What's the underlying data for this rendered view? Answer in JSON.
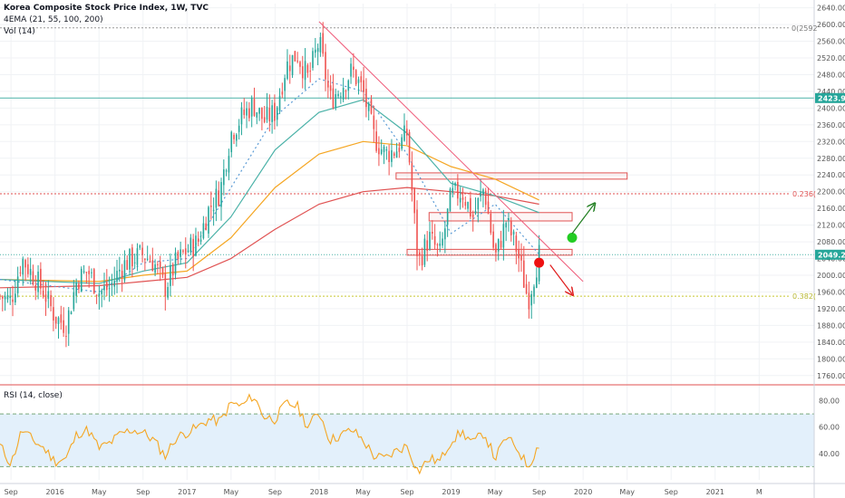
{
  "legend": {
    "title": "Korea Composite Stock Price Index, 1W, TVC",
    "ema": "4EMA (21, 55, 100, 200)",
    "vol": "Vol (14)",
    "rsi": "RSI (14, close)"
  },
  "colors": {
    "up": "#26a69a",
    "down": "#ef5350",
    "ema21": "#5b9bd5",
    "ema55": "#4bb2a8",
    "ema100": "#f5a623",
    "ema200": "#e05252",
    "rsi_line": "#f5a623",
    "rsi_band": "#e3f0fb",
    "trendline": "#ef5c7a",
    "zone": "#e05252",
    "arrow_up": "#1e7d1e",
    "arrow_down": "#e01b1b",
    "dot_green": "#22cc22",
    "dot_red": "#ee1111",
    "hline": "#4bb2a8",
    "fib236": "#e05252",
    "fib382": "#c8c832",
    "price_tag": "#26a69a"
  },
  "labels": {
    "tag_2423": "2423.99",
    "tag_2049": "2049.20",
    "fib_0": "0(2592",
    "fib_236": "0.236(",
    "fib_382": "0.382("
  },
  "chart_data": [
    {
      "type": "candlestick",
      "price_axis": {
        "ylim": [
          1740,
          2650
        ],
        "ticks": [
          1760,
          1800,
          1840,
          1880,
          1920,
          1960,
          2000,
          2040,
          2080,
          2120,
          2160,
          2200,
          2240,
          2280,
          2320,
          2360,
          2400,
          2440,
          2480,
          2520,
          2560,
          2600,
          2640
        ],
        "tick_labels": [
          "1760.00",
          "1800.00",
          "1840.00",
          "1880.00",
          "1920.00",
          "1960.00",
          "2000.00",
          "2040.00",
          "2080.00",
          "2120.00",
          "2160.00",
          "2200.00",
          "2240.00",
          "2280.00",
          "2320.00",
          "2360.00",
          "2400.00",
          "2440.00",
          "2480.00",
          "2520.00",
          "2560.00",
          "2600.00",
          "2640.00"
        ]
      },
      "time_axis": {
        "start": "2015-08",
        "end": "2021-10",
        "labels": [
          {
            "label": "Sep",
            "date": "2015-09"
          },
          {
            "label": "2016",
            "date": "2016-01"
          },
          {
            "label": "May",
            "date": "2016-05"
          },
          {
            "label": "Sep",
            "date": "2016-09"
          },
          {
            "label": "2017",
            "date": "2017-01"
          },
          {
            "label": "May",
            "date": "2017-05"
          },
          {
            "label": "Sep",
            "date": "2017-09"
          },
          {
            "label": "2018",
            "date": "2018-01"
          },
          {
            "label": "May",
            "date": "2018-05"
          },
          {
            "label": "Sep",
            "date": "2018-09"
          },
          {
            "label": "2019",
            "date": "2019-01"
          },
          {
            "label": "May",
            "date": "2019-05"
          },
          {
            "label": "Sep",
            "date": "2019-09"
          },
          {
            "label": "2020",
            "date": "2020-01"
          },
          {
            "label": "May",
            "date": "2020-05"
          },
          {
            "label": "Sep",
            "date": "2020-09"
          },
          {
            "label": "2021",
            "date": "2021-01"
          },
          {
            "label": "M",
            "date": "2021-05"
          }
        ]
      },
      "price_path": [
        [
          "2015-08",
          1950
        ],
        [
          "2015-09",
          1940
        ],
        [
          "2015-10",
          2040
        ],
        [
          "2015-11",
          2000
        ],
        [
          "2015-12",
          1960
        ],
        [
          "2016-01",
          1900
        ],
        [
          "2016-02",
          1880
        ],
        [
          "2016-03",
          1990
        ],
        [
          "2016-04",
          2010
        ],
        [
          "2016-05",
          1960
        ],
        [
          "2016-06",
          1970
        ],
        [
          "2016-07",
          2020
        ],
        [
          "2016-08",
          2040
        ],
        [
          "2016-09",
          2050
        ],
        [
          "2016-10",
          2030
        ],
        [
          "2016-11",
          1970
        ],
        [
          "2016-12",
          2030
        ],
        [
          "2017-01",
          2060
        ],
        [
          "2017-02",
          2080
        ],
        [
          "2017-03",
          2160
        ],
        [
          "2017-04",
          2200
        ],
        [
          "2017-05",
          2340
        ],
        [
          "2017-06",
          2380
        ],
        [
          "2017-07",
          2410
        ],
        [
          "2017-08",
          2370
        ],
        [
          "2017-09",
          2390
        ],
        [
          "2017-10",
          2500
        ],
        [
          "2017-11",
          2530
        ],
        [
          "2017-12",
          2470
        ],
        [
          "2018-01",
          2560
        ],
        [
          "2018-02",
          2420
        ],
        [
          "2018-03",
          2450
        ],
        [
          "2018-04",
          2490
        ],
        [
          "2018-05",
          2440
        ],
        [
          "2018-06",
          2330
        ],
        [
          "2018-07",
          2290
        ],
        [
          "2018-08",
          2300
        ],
        [
          "2018-09",
          2340
        ],
        [
          "2018-10",
          2030
        ],
        [
          "2018-11",
          2090
        ],
        [
          "2018-12",
          2050
        ],
        [
          "2019-01",
          2190
        ],
        [
          "2019-02",
          2200
        ],
        [
          "2019-03",
          2140
        ],
        [
          "2019-04",
          2210
        ],
        [
          "2019-05",
          2040
        ],
        [
          "2019-06",
          2130
        ],
        [
          "2019-07",
          2060
        ],
        [
          "2019-08",
          1940
        ],
        [
          "2019-09",
          2049.2
        ]
      ],
      "ema_21": [
        [
          "2015-08",
          1990
        ],
        [
          "2016-05",
          1960
        ],
        [
          "2016-09",
          2030
        ],
        [
          "2017-01",
          2040
        ],
        [
          "2017-05",
          2210
        ],
        [
          "2017-09",
          2380
        ],
        [
          "2018-01",
          2470
        ],
        [
          "2018-05",
          2440
        ],
        [
          "2018-09",
          2290
        ],
        [
          "2019-01",
          2100
        ],
        [
          "2019-05",
          2170
        ],
        [
          "2019-09",
          2050
        ]
      ],
      "ema_55": [
        [
          "2015-08",
          1990
        ],
        [
          "2016-05",
          1980
        ],
        [
          "2016-09",
          2010
        ],
        [
          "2017-01",
          2030
        ],
        [
          "2017-05",
          2140
        ],
        [
          "2017-09",
          2300
        ],
        [
          "2018-01",
          2390
        ],
        [
          "2018-05",
          2420
        ],
        [
          "2018-09",
          2340
        ],
        [
          "2019-01",
          2220
        ],
        [
          "2019-05",
          2190
        ],
        [
          "2019-09",
          2150
        ]
      ],
      "ema_100": [
        [
          "2015-08",
          1990
        ],
        [
          "2016-05",
          1985
        ],
        [
          "2016-09",
          2000
        ],
        [
          "2017-01",
          2010
        ],
        [
          "2017-05",
          2090
        ],
        [
          "2017-09",
          2210
        ],
        [
          "2018-01",
          2290
        ],
        [
          "2018-05",
          2320
        ],
        [
          "2018-09",
          2310
        ],
        [
          "2019-01",
          2260
        ],
        [
          "2019-05",
          2230
        ],
        [
          "2019-09",
          2180
        ]
      ],
      "ema_200": [
        [
          "2015-08",
          1970
        ],
        [
          "2016-05",
          1975
        ],
        [
          "2016-09",
          1985
        ],
        [
          "2017-01",
          1995
        ],
        [
          "2017-05",
          2040
        ],
        [
          "2017-09",
          2110
        ],
        [
          "2018-01",
          2170
        ],
        [
          "2018-05",
          2200
        ],
        [
          "2018-09",
          2210
        ],
        [
          "2019-01",
          2200
        ],
        [
          "2019-05",
          2190
        ],
        [
          "2019-09",
          2170
        ]
      ],
      "horizontal_levels": [
        2423.99,
        2049.2
      ],
      "fib_levels": [
        {
          "label": "0(2592",
          "value": 2592
        },
        {
          "label": "0.236(",
          "value": 2195
        },
        {
          "label": "0.382(",
          "value": 1950
        }
      ],
      "trendline": [
        [
          "2018-01",
          2607
        ],
        [
          "2020-01",
          1985
        ]
      ],
      "zones": [
        {
          "from": "2018-08",
          "to": "2020-05",
          "low": 2230,
          "high": 2245
        },
        {
          "from": "2018-11",
          "to": "2019-12",
          "low": 2130,
          "high": 2150
        },
        {
          "from": "2018-09",
          "to": "2019-12",
          "low": 2048,
          "high": 2062
        }
      ],
      "markers": [
        {
          "type": "dot",
          "color": "green",
          "date": "2019-12",
          "value": 2090
        },
        {
          "type": "dot",
          "color": "red",
          "date": "2019-09",
          "value": 2030
        },
        {
          "type": "arrow",
          "direction": "up",
          "from": [
            "2019-12",
            2100
          ],
          "to": [
            "2020-02",
            2170
          ]
        },
        {
          "type": "arrow",
          "direction": "down",
          "from": [
            "2019-10",
            2025
          ],
          "to": [
            "2019-12",
            1955
          ]
        }
      ]
    },
    {
      "type": "line",
      "name": "RSI (14, close)",
      "ylim": [
        20,
        90
      ],
      "ticks": [
        40,
        60,
        80
      ],
      "tick_labels": [
        "40.00",
        "60.00",
        "80.00"
      ],
      "band": [
        30,
        70
      ],
      "series": [
        [
          "2015-08",
          46
        ],
        [
          "2015-09",
          32
        ],
        [
          "2015-10",
          58
        ],
        [
          "2015-11",
          50
        ],
        [
          "2015-12",
          44
        ],
        [
          "2016-01",
          34
        ],
        [
          "2016-02",
          36
        ],
        [
          "2016-03",
          55
        ],
        [
          "2016-04",
          58
        ],
        [
          "2016-05",
          44
        ],
        [
          "2016-06",
          48
        ],
        [
          "2016-07",
          55
        ],
        [
          "2016-08",
          58
        ],
        [
          "2016-09",
          56
        ],
        [
          "2016-10",
          50
        ],
        [
          "2016-11",
          38
        ],
        [
          "2016-12",
          52
        ],
        [
          "2017-01",
          56
        ],
        [
          "2017-02",
          60
        ],
        [
          "2017-03",
          66
        ],
        [
          "2017-04",
          64
        ],
        [
          "2017-05",
          78
        ],
        [
          "2017-06",
          76
        ],
        [
          "2017-07",
          84
        ],
        [
          "2017-08",
          68
        ],
        [
          "2017-09",
          66
        ],
        [
          "2017-10",
          78
        ],
        [
          "2017-11",
          76
        ],
        [
          "2017-12",
          60
        ],
        [
          "2018-01",
          72
        ],
        [
          "2018-02",
          50
        ],
        [
          "2018-03",
          54
        ],
        [
          "2018-04",
          58
        ],
        [
          "2018-05",
          50
        ],
        [
          "2018-06",
          38
        ],
        [
          "2018-07",
          36
        ],
        [
          "2018-08",
          42
        ],
        [
          "2018-09",
          46
        ],
        [
          "2018-10",
          26
        ],
        [
          "2018-11",
          36
        ],
        [
          "2018-12",
          34
        ],
        [
          "2019-01",
          50
        ],
        [
          "2019-02",
          56
        ],
        [
          "2019-03",
          48
        ],
        [
          "2019-04",
          56
        ],
        [
          "2019-05",
          36
        ],
        [
          "2019-06",
          52
        ],
        [
          "2019-07",
          44
        ],
        [
          "2019-08",
          30
        ],
        [
          "2019-09",
          47
        ]
      ]
    }
  ]
}
